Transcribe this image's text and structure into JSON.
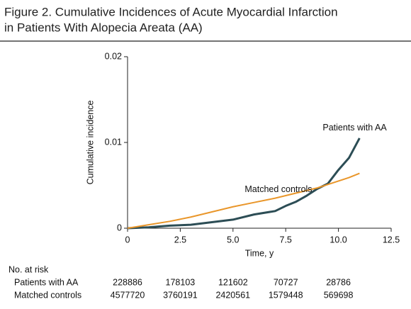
{
  "chart_data": {
    "type": "line",
    "title": "Figure 2. Cumulative Incidences of Acute Myocardial Infarction",
    "subtitle": "in Patients With Alopecia Areata (AA)",
    "x_label": "Time, y",
    "y_label": "Cumulative incidence",
    "x": [
      0,
      1,
      2,
      3,
      4,
      5,
      6,
      7,
      7.5,
      8,
      8.5,
      9,
      9.5,
      10,
      10.5,
      11
    ],
    "series": [
      {
        "name": "Patients with AA",
        "color": "#2c4d55",
        "values": [
          0,
          0.0001,
          0.0003,
          0.0004,
          0.0007,
          0.001,
          0.0016,
          0.002,
          0.0026,
          0.0031,
          0.0038,
          0.0046,
          0.0052,
          0.0068,
          0.0082,
          0.0105
        ]
      },
      {
        "name": "Matched controls",
        "color": "#e9962a",
        "values": [
          0,
          0.0004,
          0.0008,
          0.0013,
          0.0019,
          0.0025,
          0.003,
          0.0035,
          0.0038,
          0.0041,
          0.0044,
          0.0047,
          0.0051,
          0.0055,
          0.0059,
          0.0064
        ]
      }
    ],
    "xlim": [
      0,
      12.5
    ],
    "xticks": [
      0,
      2.5,
      {
        "value": 5,
        "label": "5.0"
      },
      7.5,
      {
        "value": 10,
        "label": "10.0"
      },
      12.5
    ],
    "ylim": [
      0,
      0.02
    ],
    "yticks": [
      0,
      0.01,
      0.02
    ],
    "grid": false,
    "at_risk": {
      "title": "No. at risk",
      "times": [
        0,
        2.5,
        5,
        7.5,
        10
      ],
      "rows": [
        {
          "label": "Patients with AA",
          "values": [
            228886,
            178103,
            121602,
            70727,
            28786
          ]
        },
        {
          "label": "Matched controls",
          "values": [
            4577720,
            3760191,
            2420561,
            1579448,
            569698
          ]
        }
      ]
    }
  }
}
